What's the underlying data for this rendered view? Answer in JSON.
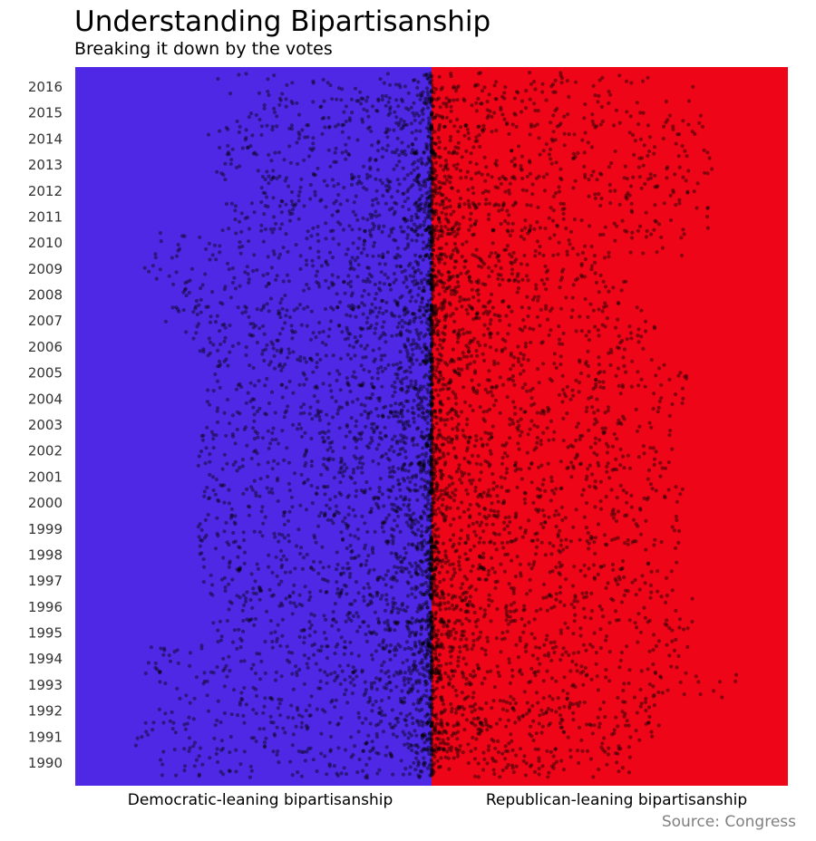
{
  "chart_data": {
    "type": "scatter",
    "title": "Understanding Bipartisanship",
    "subtitle": "Breaking it down by the votes",
    "caption": "Source: Congress",
    "x_categories": [
      "Democratic-leaning bipartisanship",
      "Republican-leaning bipartisanship"
    ],
    "y_ticks": [
      "2016",
      "2015",
      "2014",
      "2013",
      "2012",
      "2011",
      "2010",
      "2009",
      "2008",
      "2007",
      "2006",
      "2005",
      "2004",
      "2003",
      "2002",
      "2001",
      "2000",
      "1999",
      "1998",
      "1997",
      "1996",
      "1995",
      "1994",
      "1993",
      "1992",
      "1991",
      "1990"
    ],
    "colors": {
      "democratic": "#4f28e6",
      "republican": "#ee0518",
      "points": "#000000"
    },
    "grid": false,
    "legend": "none",
    "rows": [
      {
        "year": "2016",
        "left": 0.62,
        "right": 0.74,
        "density": 0.55
      },
      {
        "year": "2015",
        "left": 0.55,
        "right": 0.82,
        "density": 0.8
      },
      {
        "year": "2014",
        "left": 0.64,
        "right": 0.76,
        "density": 0.8
      },
      {
        "year": "2013",
        "left": 0.62,
        "right": 0.8,
        "density": 0.85
      },
      {
        "year": "2012",
        "left": 0.5,
        "right": 0.76,
        "density": 0.95
      },
      {
        "year": "2011",
        "left": 0.58,
        "right": 0.78,
        "density": 1.0
      },
      {
        "year": "2010",
        "left": 0.8,
        "right": 0.72,
        "density": 0.85
      },
      {
        "year": "2009",
        "left": 0.84,
        "right": 0.52,
        "density": 1.0
      },
      {
        "year": "2008",
        "left": 0.75,
        "right": 0.55,
        "density": 0.9
      },
      {
        "year": "2007",
        "left": 0.76,
        "right": 0.64,
        "density": 1.15
      },
      {
        "year": "2006",
        "left": 0.7,
        "right": 0.6,
        "density": 0.9
      },
      {
        "year": "2005",
        "left": 0.62,
        "right": 0.72,
        "density": 0.95
      },
      {
        "year": "2004",
        "left": 0.64,
        "right": 0.72,
        "density": 0.95
      },
      {
        "year": "2003",
        "left": 0.66,
        "right": 0.7,
        "density": 1.0
      },
      {
        "year": "2002",
        "left": 0.66,
        "right": 0.68,
        "density": 1.0
      },
      {
        "year": "2001",
        "left": 0.66,
        "right": 0.7,
        "density": 1.0
      },
      {
        "year": "2000",
        "left": 0.64,
        "right": 0.72,
        "density": 1.0
      },
      {
        "year": "1999",
        "left": 0.66,
        "right": 0.7,
        "density": 1.0
      },
      {
        "year": "1998",
        "left": 0.66,
        "right": 0.7,
        "density": 1.0
      },
      {
        "year": "1997",
        "left": 0.64,
        "right": 0.72,
        "density": 1.0
      },
      {
        "year": "1996",
        "left": 0.64,
        "right": 0.74,
        "density": 1.0
      },
      {
        "year": "1995",
        "left": 0.62,
        "right": 0.72,
        "density": 1.1
      },
      {
        "year": "1994",
        "left": 0.82,
        "right": 0.7,
        "density": 1.0
      },
      {
        "year": "1993",
        "left": 0.78,
        "right": 0.88,
        "density": 0.95
      },
      {
        "year": "1992",
        "left": 0.78,
        "right": 0.64,
        "density": 1.0
      },
      {
        "year": "1991",
        "left": 0.84,
        "right": 0.62,
        "density": 1.0
      },
      {
        "year": "1990",
        "left": 0.78,
        "right": 0.56,
        "density": 0.85
      }
    ]
  }
}
